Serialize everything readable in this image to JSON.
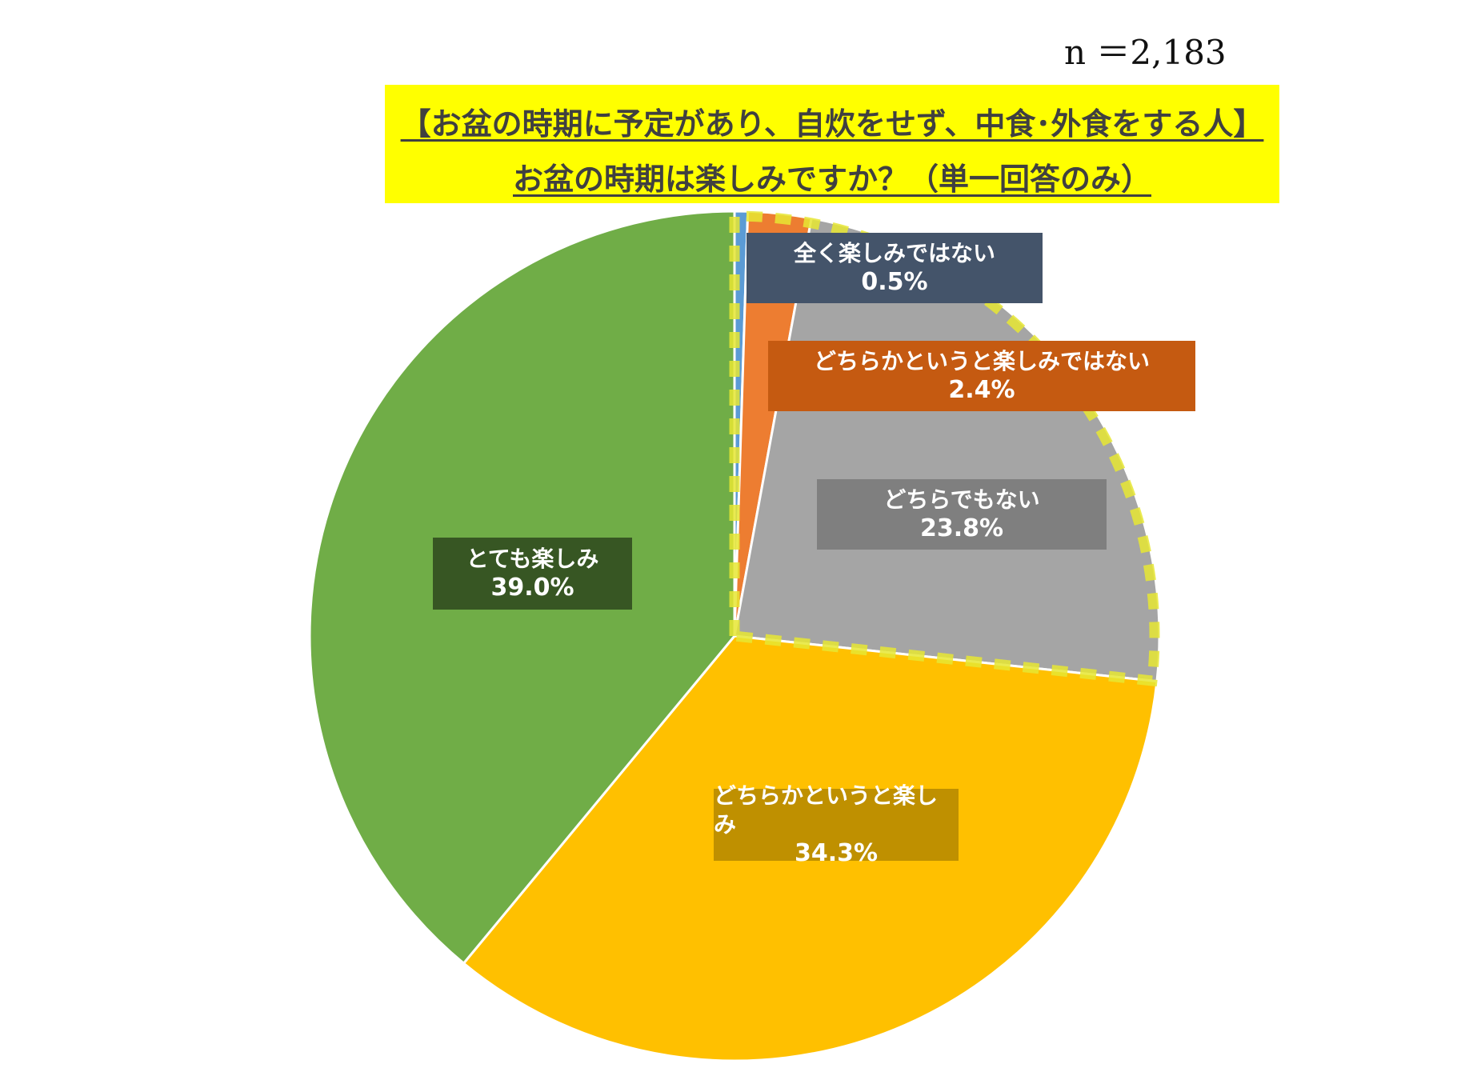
{
  "sample_size": "n ＝2,183",
  "title_line_1": "【お盆の時期に予定があり、自炊をせず、中食･外食をする人】",
  "title_line_2": "お盆の時期は楽しみですか？（単一回答のみ）",
  "colors": {
    "slice_very_not": "#5b9bd5",
    "slice_rather_not": "#ed7d31",
    "slice_neither": "#a5a5a5",
    "slice_rather": "#ffc000",
    "slice_very": "#70ad47",
    "highlight": "#e6e632",
    "title_bg": "#ffff00"
  },
  "chart_data": {
    "type": "pie",
    "unit": "%",
    "slices": [
      {
        "label": "全く楽しみではない",
        "value": 0.5,
        "display": "0.5%"
      },
      {
        "label": "どちらかというと楽しみではない",
        "value": 2.4,
        "display": "2.4%"
      },
      {
        "label": "どちらでもない",
        "value": 23.8,
        "display": "23.8%"
      },
      {
        "label": "どちらかというと楽しみ",
        "value": 34.3,
        "display": "34.3%"
      },
      {
        "label": "とても楽しみ",
        "value": 39.0,
        "display": "39.0%"
      }
    ]
  }
}
